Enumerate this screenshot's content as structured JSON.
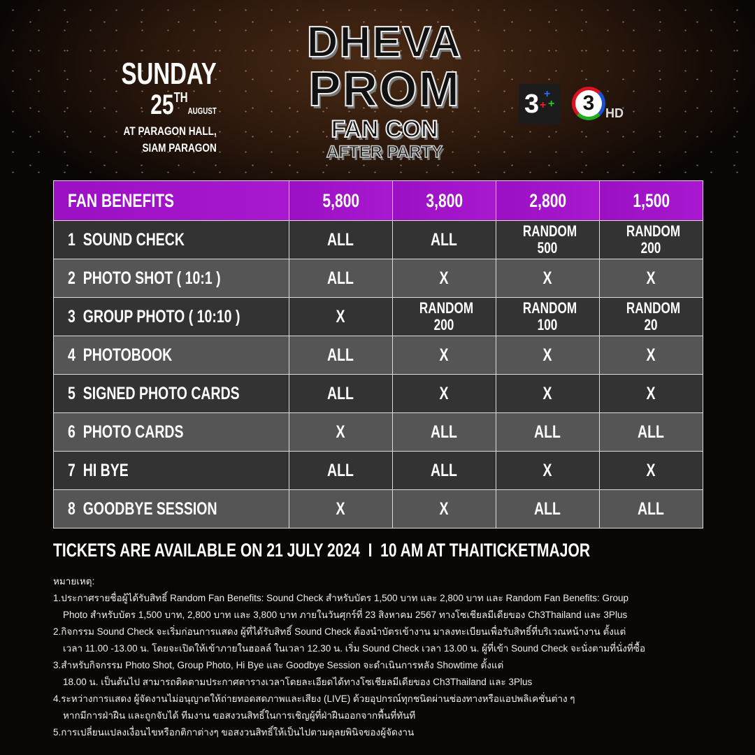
{
  "event": {
    "day": "SUNDAY",
    "date_num": "25",
    "date_suffix": "TH",
    "month": "AUGUST",
    "venue1": "AT PARAGON HALL,",
    "venue2": "SIAM PARAGON"
  },
  "logo": {
    "line1": "DHEVA",
    "line2": "PROM",
    "line3": "FAN CON",
    "line4": "AFTER PARTY"
  },
  "broadcasters": {
    "ch3plus": "3",
    "ch3hd": "3",
    "hd_label": "HD"
  },
  "colors": {
    "header": "#a010c8",
    "row_dark": "#333333",
    "row_light": "#555555"
  },
  "table": {
    "headers": [
      "FAN BENEFITS",
      "5,800",
      "3,800",
      "2,800",
      "1,500"
    ],
    "rows": [
      {
        "no": "1",
        "name": "SOUND CHECK",
        "cells": [
          "ALL",
          "ALL",
          "RANDOM 500",
          "RANDOM 200"
        ]
      },
      {
        "no": "2",
        "name": "PHOTO SHOT ( 10:1 )",
        "cells": [
          "ALL",
          "X",
          "X",
          "X"
        ]
      },
      {
        "no": "3",
        "name": "GROUP PHOTO ( 10:10 )",
        "cells": [
          "X",
          "RANDOM 200",
          "RANDOM 100",
          "RANDOM 20"
        ]
      },
      {
        "no": "4",
        "name": "PHOTOBOOK",
        "cells": [
          "ALL",
          "X",
          "X",
          "X"
        ]
      },
      {
        "no": "5",
        "name": "SIGNED PHOTO CARDS",
        "cells": [
          "ALL",
          "X",
          "X",
          "X"
        ]
      },
      {
        "no": "6",
        "name": "PHOTO CARDS",
        "cells": [
          "X",
          "ALL",
          "ALL",
          "ALL"
        ]
      },
      {
        "no": "7",
        "name": "HI BYE",
        "cells": [
          "ALL",
          "ALL",
          "X",
          "X"
        ]
      },
      {
        "no": "8",
        "name": "GOODBYE SESSION",
        "cells": [
          "X",
          "X",
          "ALL",
          "ALL"
        ]
      }
    ]
  },
  "tickets": "TICKETS ARE AVAILABLE ON 21 JULY 2024  I  10 AM AT THAITICKETMAJOR",
  "notes": {
    "title": "หมายเหตุ:",
    "lines": [
      "1.ประกาศรายชื่อผู้ได้รับสิทธิ์ Random Fan Benefits: Sound Check สำหรับบัตร 1,500 บาท และ 2,800 บาท และ Random Fan Benefits: Group",
      "Photo สำหรับบัตร 1,500 บาท, 2,800 บาท และ 3,800 บาท ภายในวันศุกร์ที่ 23 สิงหาคม 2567 ทางโซเชียลมีเดียของ Ch3Thailand และ 3Plus",
      "2.กิจกรรม Sound Check จะเริ่มก่อนการแสดง ผู้ที่ได้รับสิทธิ์ Sound Check ต้องนำบัตรเข้างาน มาลงทะเบียนเพื่อรับสิทธิ์ที่บริเวณหน้างาน ตั้งแต่",
      "เวลา 11.00 -13.00 น. โดยจะเปิดให้เข้าภายในฮอลล์ ในเวลา 12.30 น. เริ่ม Sound Check เวลา 13.00 น. ผู้ที่เข้า Sound Check จะนั่งตามที่นั่งที่ซื้อ",
      "3.สำหรับกิจกรรม Photo Shot, Group Photo, Hi Bye และ Goodbye Session จะดำเนินการหลัง Showtime ตั้งแต่",
      "18.00 น. เป็นต้นไป สามารถติดตามประกาศตารางเวลาโดยละเอียดได้ทางโซเชียลมีเดียของ Ch3Thailand และ 3Plus",
      "4.ระหว่างการแสดง ผู้จัดงานไม่อนุญาตให้ถ่ายทอดสดภาพและเสียง (LIVE) ด้วยอุปกรณ์ทุกชนิดผ่านช่องทางหรือแอปพลิเคชั่นต่าง ๆ",
      "หากมีการฝ่าฝืน และถูกจับได้ ทีมงาน ขอสงวนสิทธิ์ในการเชิญผู้ที่ฝ่าฝืนออกจากพื้นที่ทันที",
      "5.การเปลี่ยนแปลงเงื่อนไขหรือกติกาต่างๆ ขอสงวนสิทธิ์ให้เป็นไปตามดุลยพินิจของผู้จัดงาน"
    ]
  }
}
